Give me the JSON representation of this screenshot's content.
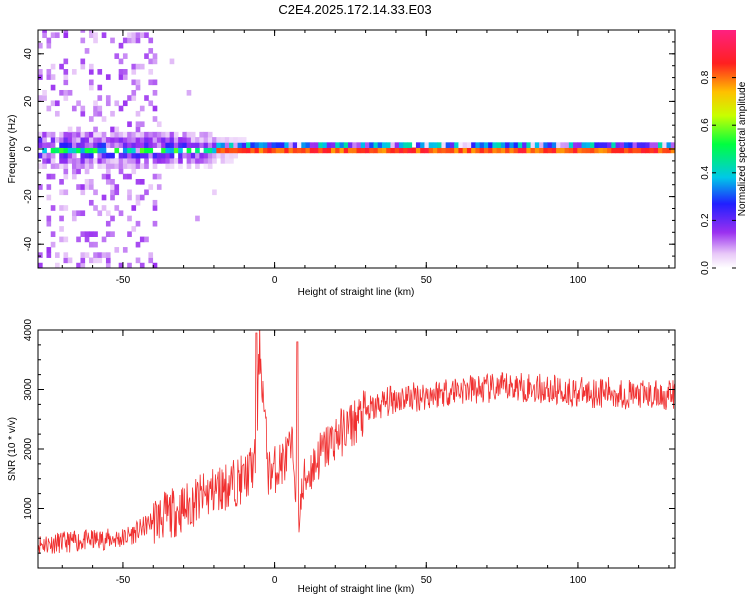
{
  "title": "C2E4.2025.172.14.33.E03",
  "colors": {
    "snr_line": "#f03030",
    "background": "#ffffff",
    "axis": "#000000"
  },
  "chart_data": [
    {
      "type": "heatmap",
      "xlabel": "Height of straight line (km)",
      "ylabel": "Frequency (Hz)",
      "xlim": [
        -78,
        132
      ],
      "ylim": [
        -50,
        50
      ],
      "x_ticks": [
        -50,
        0,
        50,
        100
      ],
      "y_ticks": [
        -40,
        -20,
        0,
        20,
        40
      ],
      "colorbar": {
        "label": "Normalized spectral amplitude",
        "range": [
          0,
          1
        ],
        "ticks": [
          0.0,
          0.2,
          0.4,
          0.6,
          0.8
        ],
        "tick_labels": [
          "0.0",
          "0.2",
          "0.4",
          "0.6",
          "0.8"
        ],
        "colormap": "rainbow (white-violet-blue-cyan-green-yellow-red-magenta)"
      },
      "features": [
        {
          "description": "narrow high-amplitude line at 0 Hz",
          "x_range": [
            -20,
            132
          ],
          "frequency": 0,
          "amplitude": 0.9
        },
        {
          "description": "broad low-amplitude band around 0 Hz",
          "x_range": [
            -78,
            -10
          ],
          "frequency_range": [
            -8,
            8
          ],
          "amplitude": 0.3
        },
        {
          "description": "scattered weak spectral energy",
          "x_range": [
            -78,
            -40
          ],
          "frequency_range": [
            -50,
            50
          ],
          "amplitude": 0.05
        }
      ]
    },
    {
      "type": "line",
      "xlabel": "Height of straight line (km)",
      "ylabel": "SNR (10 * v/v)",
      "xlim": [
        -78,
        132
      ],
      "ylim": [
        0,
        4000
      ],
      "x_ticks": [
        -50,
        0,
        50,
        100
      ],
      "y_ticks": [
        1000,
        2000,
        3000,
        4000
      ],
      "series": [
        {
          "x": [
            -78,
            -70,
            -60,
            -50,
            -45,
            -40,
            -35,
            -30,
            -25,
            -20,
            -15,
            -10,
            -6,
            -5,
            -2,
            0,
            3,
            6,
            8,
            10,
            15,
            20,
            25,
            30,
            35,
            40,
            50,
            60,
            70,
            80,
            90,
            100,
            110,
            120,
            132
          ],
          "y": [
            400,
            430,
            470,
            500,
            620,
            800,
            900,
            1000,
            1150,
            1300,
            1400,
            1500,
            1800,
            3800,
            1600,
            1650,
            1800,
            2000,
            900,
            1500,
            1900,
            2200,
            2400,
            2600,
            2750,
            2850,
            2900,
            3000,
            3000,
            3050,
            3000,
            2950,
            2950,
            2900,
            2900
          ]
        }
      ]
    }
  ]
}
